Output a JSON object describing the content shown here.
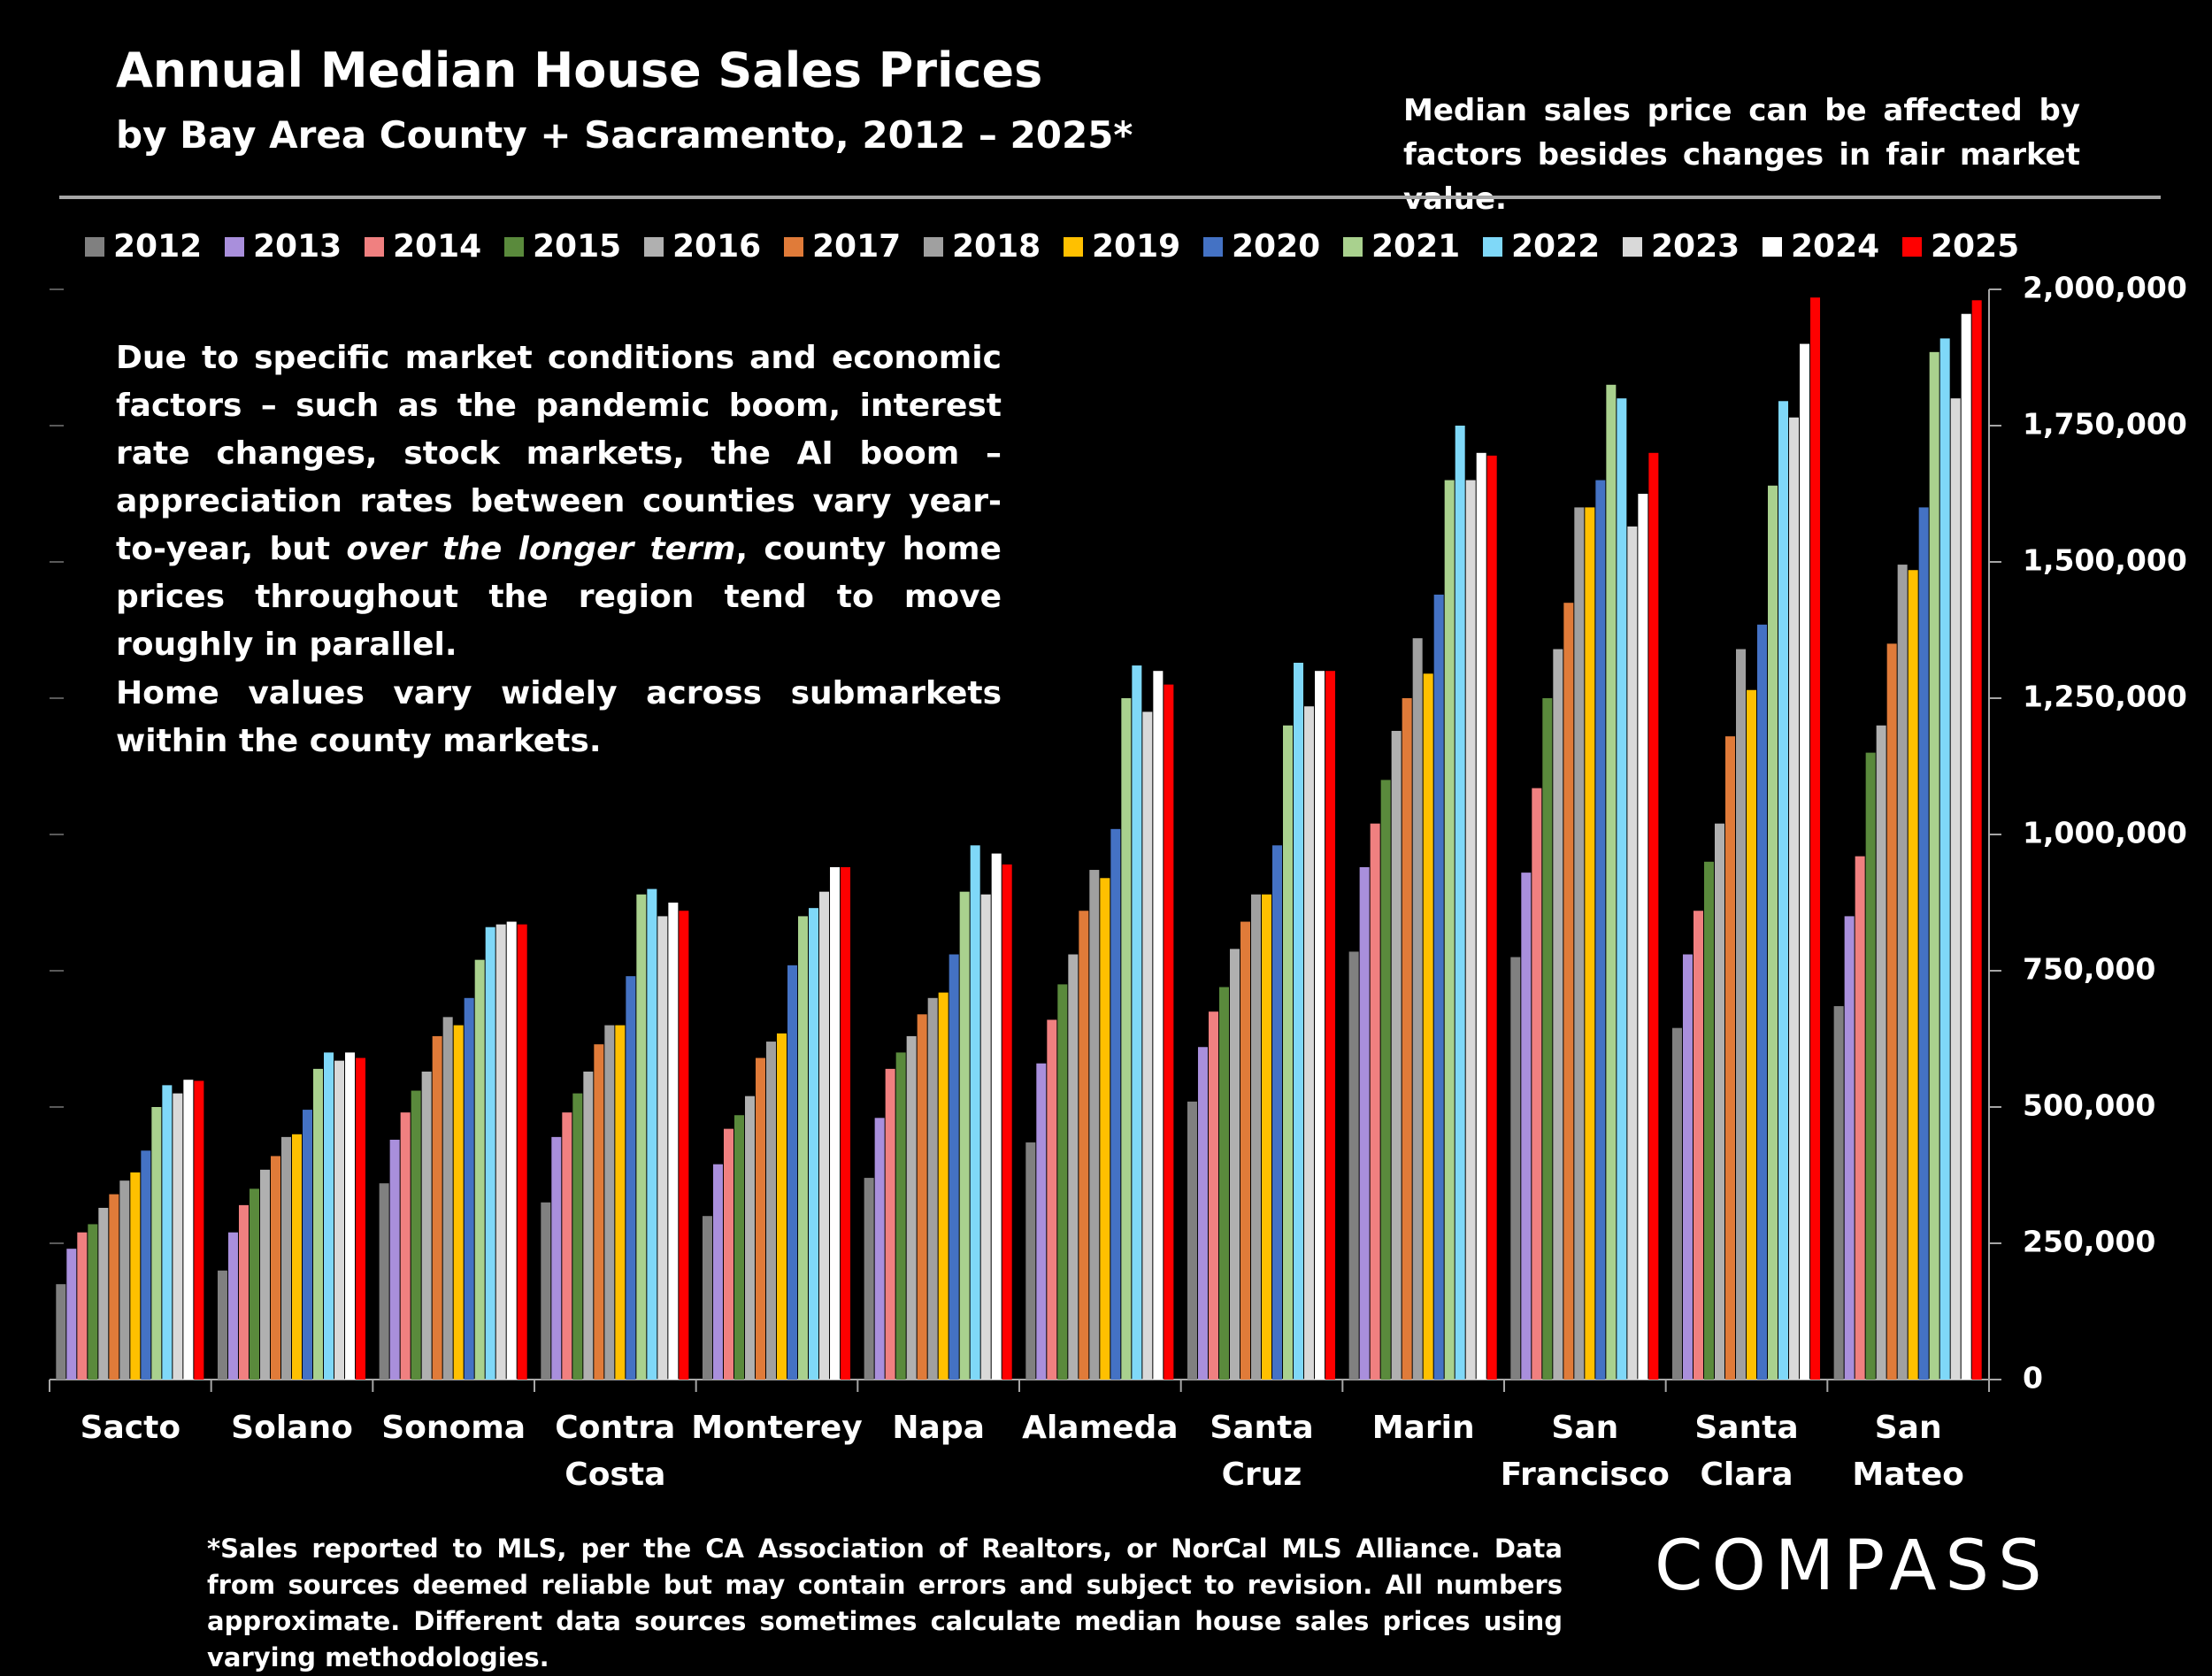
{
  "chart_data": {
    "type": "bar",
    "title": "Annual Median House Sales Prices",
    "subtitle": "by Bay Area County + Sacramento, 2012 – 2025*",
    "note": "Median sales price can be affected by factors besides changes in fair market value.",
    "annotation": [
      "Due to specific market conditions and economic factors – such as the pandemic boom, interest rate changes, stock markets, the AI boom – appreciation rates between counties vary year-to-year, but ",
      "over the longer term",
      ", county home prices throughout the region tend to move roughly in parallel."
    ],
    "annotation_2": "Home values vary widely across submarkets within the county markets.",
    "footnote": "*Sales reported to MLS, per the CA Association of Realtors, or NorCal MLS Alliance. Data from sources deemed reliable but may contain errors and subject to revision. All numbers approximate. Different data sources sometimes calculate median house sales prices using varying methodologies.",
    "logo": "COMPASS",
    "categories": [
      "Sacto",
      "Solano",
      "Sonoma",
      "Contra Costa",
      "Monterey",
      "Napa",
      "Alameda",
      "Santa Cruz",
      "Marin",
      "San Francisco",
      "Santa Clara",
      "San Mateo"
    ],
    "series": [
      {
        "name": "2012",
        "color": "#808080",
        "values": [
          175000,
          200000,
          360000,
          325000,
          300000,
          370000,
          435000,
          510000,
          785000,
          775000,
          645000,
          685000
        ]
      },
      {
        "name": "2013",
        "color": "#a98fdc",
        "values": [
          240000,
          270000,
          440000,
          445000,
          395000,
          480000,
          580000,
          610000,
          940000,
          930000,
          780000,
          850000
        ]
      },
      {
        "name": "2014",
        "color": "#f08080",
        "values": [
          270000,
          320000,
          490000,
          490000,
          460000,
          570000,
          660000,
          675000,
          1020000,
          1085000,
          860000,
          960000
        ]
      },
      {
        "name": "2015",
        "color": "#5a8a3c",
        "values": [
          285000,
          350000,
          530000,
          525000,
          485000,
          600000,
          725000,
          720000,
          1100000,
          1250000,
          950000,
          1150000
        ]
      },
      {
        "name": "2016",
        "color": "#b0b0b0",
        "values": [
          315000,
          385000,
          565000,
          565000,
          520000,
          630000,
          780000,
          790000,
          1190000,
          1340000,
          1020000,
          1200000
        ]
      },
      {
        "name": "2017",
        "color": "#e07b39",
        "values": [
          340000,
          410000,
          630000,
          615000,
          590000,
          670000,
          860000,
          840000,
          1250000,
          1425000,
          1180000,
          1350000
        ]
      },
      {
        "name": "2018",
        "color": "#a0a0a0",
        "values": [
          365000,
          445000,
          665000,
          650000,
          620000,
          700000,
          935000,
          890000,
          1360000,
          1600000,
          1340000,
          1495000
        ]
      },
      {
        "name": "2019",
        "color": "#ffc000",
        "values": [
          380000,
          450000,
          650000,
          650000,
          635000,
          710000,
          920000,
          890000,
          1295000,
          1600000,
          1265000,
          1485000
        ]
      },
      {
        "name": "2020",
        "color": "#4472c4",
        "values": [
          420000,
          495000,
          700000,
          740000,
          760000,
          780000,
          1010000,
          980000,
          1440000,
          1650000,
          1385000,
          1600000
        ]
      },
      {
        "name": "2021",
        "color": "#a9d18e",
        "values": [
          500000,
          570000,
          770000,
          890000,
          850000,
          895000,
          1250000,
          1200000,
          1650000,
          1825000,
          1640000,
          1885000
        ]
      },
      {
        "name": "2022",
        "color": "#7fd8f8",
        "values": [
          540000,
          600000,
          830000,
          900000,
          865000,
          980000,
          1310000,
          1315000,
          1750000,
          1800000,
          1795000,
          1910000
        ]
      },
      {
        "name": "2023",
        "color": "#d9d9d9",
        "values": [
          525000,
          585000,
          835000,
          850000,
          895000,
          890000,
          1225000,
          1235000,
          1650000,
          1565000,
          1765000,
          1800000
        ]
      },
      {
        "name": "2024",
        "color": "#ffffff",
        "values": [
          550000,
          600000,
          840000,
          875000,
          940000,
          965000,
          1300000,
          1300000,
          1700000,
          1625000,
          1900000,
          1955000
        ]
      },
      {
        "name": "2025",
        "color": "#ff0000",
        "values": [
          548000,
          590000,
          835000,
          860000,
          940000,
          945000,
          1275000,
          1300000,
          1695000,
          1700000,
          1985000,
          1980000
        ]
      }
    ],
    "ylim": [
      0,
      2000000
    ],
    "yticks": [
      0,
      {
        "value": 250000,
        "label": "250,000"
      },
      {
        "value": 500000,
        "label": "500,000"
      },
      {
        "value": 750000,
        "label": "750,000"
      },
      {
        "value": 1000000,
        "label": "1,000,000"
      },
      {
        "value": 1250000,
        "label": "1,250,000"
      },
      {
        "value": 1500000,
        "label": "1,500,000"
      },
      {
        "value": 1750000,
        "label": "1,750,000"
      },
      {
        "value": 2000000,
        "label": "2,000,000"
      }
    ],
    "grid": false
  }
}
